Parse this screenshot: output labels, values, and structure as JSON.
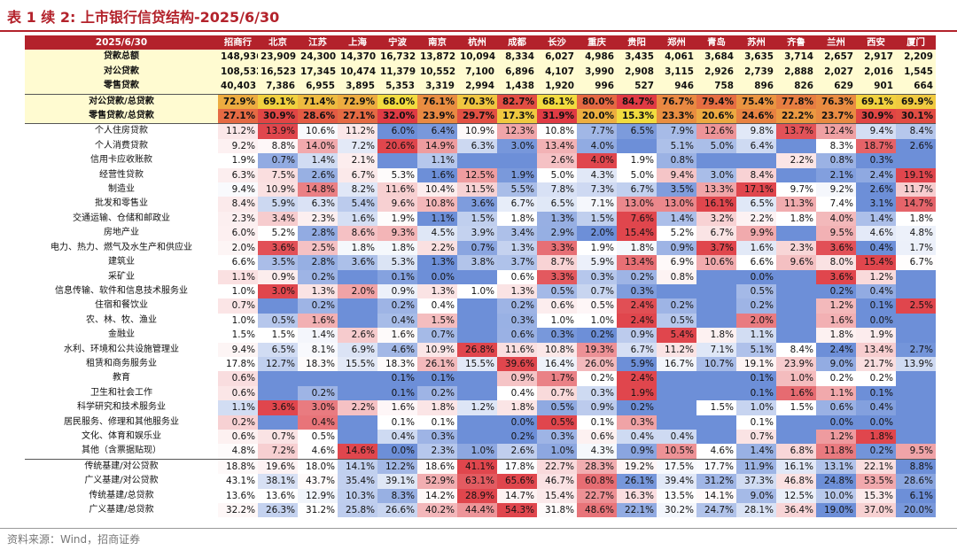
{
  "title": "表 1 续 2:  上市银行信贷结构-2025/6/30",
  "source": "资料来源：Wind，招商证券",
  "table": {
    "corner": "2025/6/30",
    "columns": [
      "招商行",
      "北京",
      "江苏",
      "上海",
      "宁波",
      "南京",
      "杭州",
      "成都",
      "长沙",
      "重庆",
      "贵阳",
      "郑州",
      "青岛",
      "苏州",
      "齐鲁",
      "兰州",
      "西安",
      "厦门"
    ],
    "rows": [
      {
        "label": "贷款总额",
        "kind": "sum",
        "values": [
          "148,936",
          "23,909",
          "24,300",
          "14,370",
          "16,732",
          "13,872",
          "10,094",
          "8,334",
          "6,027",
          "4,986",
          "3,435",
          "4,061",
          "3,684",
          "3,635",
          "3,714",
          "2,657",
          "2,917",
          "2,209"
        ]
      },
      {
        "label": "对公贷款",
        "kind": "sum",
        "values": [
          "108,532",
          "16,523",
          "17,345",
          "10,474",
          "11,379",
          "10,552",
          "7,100",
          "6,896",
          "4,107",
          "3,990",
          "2,908",
          "3,115",
          "2,926",
          "2,739",
          "2,888",
          "2,027",
          "2,016",
          "1,545"
        ]
      },
      {
        "label": "零售贷款",
        "kind": "sum",
        "values": [
          "40,403",
          "7,386",
          "6,955",
          "3,895",
          "5,353",
          "3,319",
          "2,994",
          "1,438",
          "1,920",
          "996",
          "527",
          "946",
          "758",
          "896",
          "826",
          "629",
          "901",
          "664"
        ]
      },
      {
        "label": "对公贷款/总贷款",
        "kind": "ratio",
        "values": [
          "72.9%",
          "69.1%",
          "71.4%",
          "72.9%",
          "68.0%",
          "76.1%",
          "70.3%",
          "82.7%",
          "68.1%",
          "80.0%",
          "84.7%",
          "76.7%",
          "79.4%",
          "75.4%",
          "77.8%",
          "76.3%",
          "69.1%",
          "69.9%"
        ]
      },
      {
        "label": "零售贷款/总贷款",
        "kind": "ratio",
        "values": [
          "27.1%",
          "30.9%",
          "28.6%",
          "27.1%",
          "32.0%",
          "23.9%",
          "29.7%",
          "17.3%",
          "31.9%",
          "20.0%",
          "15.3%",
          "23.3%",
          "20.6%",
          "24.6%",
          "22.2%",
          "23.7%",
          "30.9%",
          "30.1%"
        ]
      },
      {
        "label": "个人住房贷款",
        "kind": "sector",
        "values": [
          "11.2%",
          "13.9%",
          "10.6%",
          "11.2%",
          "6.0%",
          "6.4%",
          "10.9%",
          "12.3%",
          "10.8%",
          "7.7%",
          "6.5%",
          "7.9%",
          "12.6%",
          "9.8%",
          "13.7%",
          "12.4%",
          "9.4%",
          "8.4%"
        ]
      },
      {
        "label": "个人消费贷款",
        "kind": "sector",
        "values": [
          "9.2%",
          "8.8%",
          "14.0%",
          "7.2%",
          "20.6%",
          "14.9%",
          "6.3%",
          "3.0%",
          "13.4%",
          "4.0%",
          "",
          "5.1%",
          "5.0%",
          "6.4%",
          "",
          "8.3%",
          "18.7%",
          "2.6%"
        ]
      },
      {
        "label": "信用卡应收账款",
        "kind": "sector",
        "values": [
          "1.9%",
          "0.7%",
          "1.4%",
          "2.1%",
          "",
          "1.1%",
          "",
          "",
          "2.6%",
          "4.0%",
          "1.9%",
          "0.8%",
          "",
          "",
          "2.2%",
          "0.8%",
          "0.3%",
          ""
        ]
      },
      {
        "label": "经营性贷款",
        "kind": "sector",
        "values": [
          "6.3%",
          "7.5%",
          "2.6%",
          "6.7%",
          "5.3%",
          "1.6%",
          "12.5%",
          "1.9%",
          "5.0%",
          "4.3%",
          "5.0%",
          "9.4%",
          "3.0%",
          "8.4%",
          "",
          "2.1%",
          "2.4%",
          "19.1%"
        ]
      },
      {
        "label": "制造业",
        "kind": "sector",
        "values": [
          "9.4%",
          "10.9%",
          "14.8%",
          "8.2%",
          "11.6%",
          "10.4%",
          "11.5%",
          "5.5%",
          "7.8%",
          "7.3%",
          "6.7%",
          "3.5%",
          "13.3%",
          "17.1%",
          "9.7%",
          "9.2%",
          "2.6%",
          "11.7%"
        ]
      },
      {
        "label": "批发和零售业",
        "kind": "sector",
        "values": [
          "8.4%",
          "5.9%",
          "6.3%",
          "5.4%",
          "9.6%",
          "10.8%",
          "3.6%",
          "6.7%",
          "6.5%",
          "7.1%",
          "13.0%",
          "13.0%",
          "16.1%",
          "6.5%",
          "11.3%",
          "7.4%",
          "3.1%",
          "14.7%"
        ]
      },
      {
        "label": "交通运输、仓储和邮政业",
        "kind": "sector",
        "values": [
          "2.3%",
          "3.4%",
          "2.3%",
          "1.6%",
          "1.9%",
          "1.1%",
          "1.5%",
          "1.8%",
          "1.3%",
          "1.5%",
          "7.6%",
          "1.4%",
          "3.2%",
          "2.2%",
          "1.8%",
          "4.0%",
          "1.4%",
          "1.8%"
        ]
      },
      {
        "label": "房地产业",
        "kind": "sector",
        "values": [
          "6.0%",
          "5.2%",
          "2.8%",
          "8.6%",
          "9.3%",
          "4.5%",
          "3.9%",
          "3.4%",
          "2.9%",
          "2.0%",
          "15.4%",
          "5.2%",
          "6.7%",
          "9.9%",
          "",
          "9.5%",
          "4.6%",
          "4.8%"
        ]
      },
      {
        "label": "电力、热力、燃气及水生产和供应业",
        "kind": "sector",
        "values": [
          "2.0%",
          "3.6%",
          "2.5%",
          "1.8%",
          "1.8%",
          "2.2%",
          "0.7%",
          "1.3%",
          "3.3%",
          "1.9%",
          "1.8%",
          "0.9%",
          "3.7%",
          "1.6%",
          "2.3%",
          "3.6%",
          "0.4%",
          "1.7%"
        ]
      },
      {
        "label": "建筑业",
        "kind": "sector",
        "values": [
          "6.6%",
          "3.5%",
          "2.8%",
          "3.6%",
          "5.3%",
          "1.3%",
          "3.8%",
          "3.7%",
          "8.7%",
          "5.9%",
          "13.4%",
          "6.9%",
          "10.6%",
          "6.6%",
          "9.6%",
          "8.0%",
          "15.4%",
          "6.7%"
        ]
      },
      {
        "label": "采矿业",
        "kind": "sector",
        "values": [
          "1.1%",
          "0.9%",
          "0.2%",
          "",
          "0.1%",
          "0.0%",
          "",
          "0.6%",
          "3.3%",
          "0.3%",
          "0.2%",
          "0.8%",
          "",
          "0.0%",
          "",
          "3.6%",
          "1.2%",
          ""
        ]
      },
      {
        "label": "信息传输、软件和信息技术服务业",
        "kind": "sector",
        "values": [
          "1.0%",
          "3.0%",
          "1.3%",
          "2.0%",
          "0.9%",
          "1.3%",
          "1.0%",
          "1.3%",
          "0.5%",
          "0.7%",
          "0.3%",
          "",
          "",
          "0.5%",
          "",
          "0.2%",
          "0.4%",
          ""
        ]
      },
      {
        "label": "住宿和餐饮业",
        "kind": "sector",
        "values": [
          "0.7%",
          "",
          "0.2%",
          "",
          "0.2%",
          "0.4%",
          "",
          "0.2%",
          "0.6%",
          "0.5%",
          "2.4%",
          "0.2%",
          "",
          "0.2%",
          "",
          "1.2%",
          "0.1%",
          "2.5%"
        ]
      },
      {
        "label": "农、林、牧、渔业",
        "kind": "sector",
        "values": [
          "1.0%",
          "0.5%",
          "1.6%",
          "",
          "0.4%",
          "1.5%",
          "",
          "0.3%",
          "1.0%",
          "1.0%",
          "2.4%",
          "0.5%",
          "",
          "2.0%",
          "",
          "1.6%",
          "0.0%",
          ""
        ]
      },
      {
        "label": "金融业",
        "kind": "sector",
        "values": [
          "1.5%",
          "1.5%",
          "1.4%",
          "2.6%",
          "1.6%",
          "0.7%",
          "",
          "0.6%",
          "0.3%",
          "0.2%",
          "0.9%",
          "5.4%",
          "1.8%",
          "1.1%",
          "",
          "1.8%",
          "1.9%",
          ""
        ]
      },
      {
        "label": "水利、环境和公共设施管理业",
        "kind": "sector",
        "values": [
          "9.4%",
          "6.5%",
          "8.1%",
          "6.9%",
          "4.6%",
          "10.9%",
          "26.8%",
          "11.6%",
          "10.8%",
          "19.3%",
          "6.7%",
          "11.2%",
          "7.1%",
          "5.1%",
          "8.4%",
          "2.4%",
          "13.4%",
          "2.7%"
        ]
      },
      {
        "label": "租赁和商务服务业",
        "kind": "sector",
        "values": [
          "17.8%",
          "12.7%",
          "18.3%",
          "15.5%",
          "18.3%",
          "26.1%",
          "15.5%",
          "39.6%",
          "16.4%",
          "26.0%",
          "5.9%",
          "16.7%",
          "10.7%",
          "19.1%",
          "23.9%",
          "9.0%",
          "21.7%",
          "13.9%"
        ]
      },
      {
        "label": "教育",
        "kind": "sector",
        "values": [
          "0.6%",
          "",
          "",
          "",
          "0.1%",
          "0.1%",
          "",
          "0.9%",
          "1.7%",
          "0.2%",
          "2.4%",
          "",
          "",
          "0.1%",
          "1.0%",
          "0.2%",
          "0.2%",
          ""
        ]
      },
      {
        "label": "卫生和社会工作",
        "kind": "sector",
        "values": [
          "0.6%",
          "",
          "0.2%",
          "",
          "0.1%",
          "0.2%",
          "",
          "0.4%",
          "0.7%",
          "0.3%",
          "1.9%",
          "",
          "",
          "0.1%",
          "1.6%",
          "1.1%",
          "0.1%",
          ""
        ]
      },
      {
        "label": "科学研究和技术服务业",
        "kind": "sector",
        "values": [
          "1.1%",
          "3.6%",
          "3.0%",
          "2.2%",
          "1.6%",
          "1.8%",
          "1.2%",
          "1.8%",
          "0.5%",
          "0.9%",
          "0.2%",
          "",
          "1.5%",
          "1.0%",
          "1.5%",
          "0.6%",
          "0.4%",
          ""
        ]
      },
      {
        "label": "居民服务、修理和其他服务业",
        "kind": "sector",
        "values": [
          "0.2%",
          "",
          "0.4%",
          "",
          "0.1%",
          "0.1%",
          "",
          "0.0%",
          "0.5%",
          "0.1%",
          "0.3%",
          "",
          "",
          "0.1%",
          "",
          "0.0%",
          "0.0%",
          ""
        ]
      },
      {
        "label": "文化、体育和娱乐业",
        "kind": "sector",
        "values": [
          "0.6%",
          "0.7%",
          "0.5%",
          "",
          "0.4%",
          "0.3%",
          "",
          "0.2%",
          "0.3%",
          "0.6%",
          "0.4%",
          "0.4%",
          "",
          "0.7%",
          "",
          "1.2%",
          "1.8%",
          ""
        ]
      },
      {
        "label": "其他（含票据贴现）",
        "kind": "sector",
        "values": [
          "4.8%",
          "7.2%",
          "4.6%",
          "14.6%",
          "0.0%",
          "2.3%",
          "1.0%",
          "2.6%",
          "1.0%",
          "4.3%",
          "0.9%",
          "10.5%",
          "4.6%",
          "1.4%",
          "6.8%",
          "11.8%",
          "0.2%",
          "9.5%"
        ]
      },
      {
        "label": "传统基建/对公贷款",
        "kind": "infra",
        "values": [
          "18.8%",
          "19.6%",
          "18.0%",
          "14.1%",
          "12.2%",
          "18.6%",
          "41.1%",
          "17.8%",
          "22.7%",
          "28.3%",
          "19.2%",
          "17.5%",
          "17.7%",
          "11.9%",
          "16.1%",
          "13.1%",
          "22.1%",
          "8.8%"
        ]
      },
      {
        "label": "广义基建/对公贷款",
        "kind": "infra",
        "values": [
          "43.1%",
          "38.1%",
          "43.7%",
          "35.4%",
          "39.1%",
          "52.9%",
          "63.1%",
          "65.6%",
          "46.7%",
          "60.8%",
          "26.1%",
          "39.4%",
          "31.2%",
          "37.3%",
          "46.8%",
          "24.8%",
          "53.5%",
          "28.6%"
        ]
      },
      {
        "label": "传统基建/总贷款",
        "kind": "infra",
        "values": [
          "13.6%",
          "13.6%",
          "12.9%",
          "10.3%",
          "8.3%",
          "14.2%",
          "28.9%",
          "14.7%",
          "15.4%",
          "22.7%",
          "16.3%",
          "13.5%",
          "14.1%",
          "9.0%",
          "12.5%",
          "10.0%",
          "15.3%",
          "6.1%"
        ]
      },
      {
        "label": "广义基建/总贷款",
        "kind": "infra",
        "values": [
          "32.2%",
          "26.3%",
          "31.2%",
          "25.8%",
          "26.6%",
          "40.2%",
          "44.4%",
          "54.3%",
          "31.8%",
          "48.6%",
          "22.1%",
          "30.2%",
          "24.7%",
          "28.1%",
          "36.4%",
          "19.0%",
          "37.0%",
          "20.0%"
        ]
      }
    ]
  },
  "colors": {
    "header_bg": "#b3222b",
    "title_red": "#b3222b",
    "sum_bg": "#fffbd1",
    "scale_low_blue": "#6d8fd8",
    "scale_mid": "#ffffff",
    "scale_high_red": "#e0464d",
    "scale_ratio_low": "#f2dc3f",
    "scale_ratio_high": "#e03a44"
  }
}
